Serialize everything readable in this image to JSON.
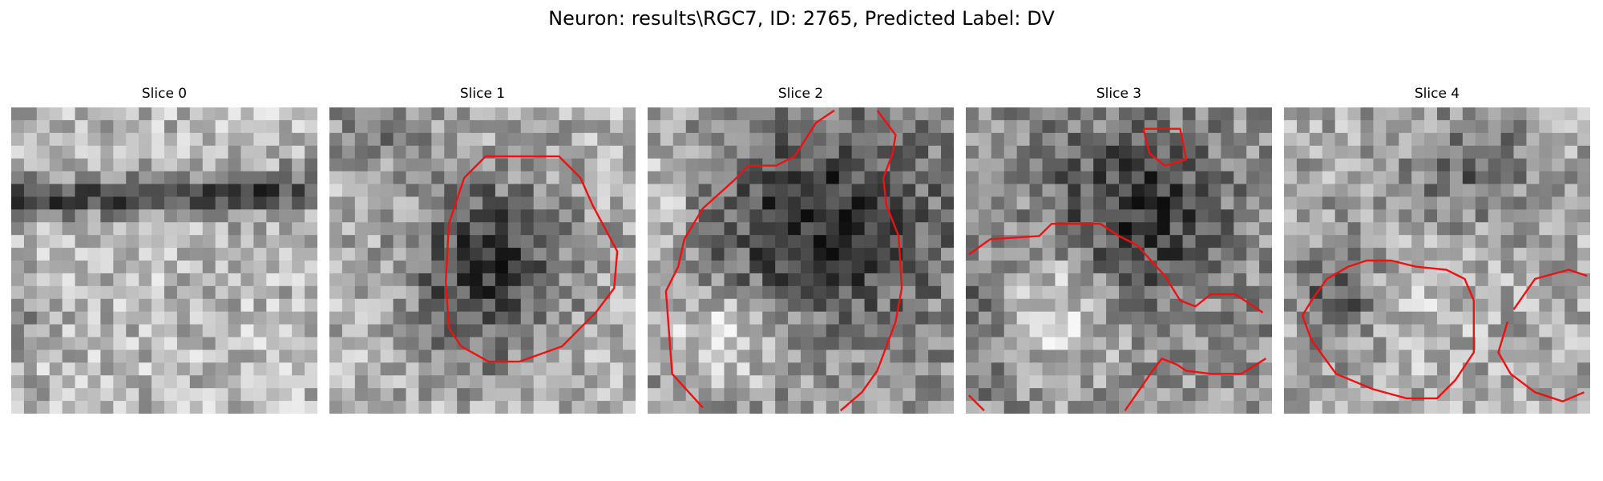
{
  "figure": {
    "title": "Neuron: results\\RGC7, ID: 2765, Predicted Label: DV"
  },
  "panels": [
    {
      "label": "Slice 0"
    },
    {
      "label": "Slice 1"
    },
    {
      "label": "Slice 2"
    },
    {
      "label": "Slice 3"
    },
    {
      "label": "Slice 4"
    }
  ],
  "colors": {
    "background": "#ffffff",
    "contour": "#ee1111",
    "dark_pixel": "#111111",
    "light_pixel": "#f4f4f4"
  }
}
